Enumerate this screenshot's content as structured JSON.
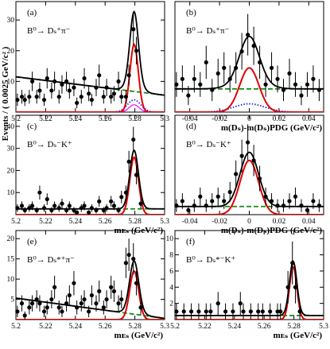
{
  "y_axis_label": "Events / ( 0.0025 GeV/c² )",
  "chart_data": [
    {
      "type": "scatter",
      "panel_label": "(a)",
      "decay": "B⁰→ Dₛ⁺π⁻",
      "xlim": [
        5.2,
        5.3
      ],
      "ylim": [
        0,
        36
      ],
      "xticks": [
        "5.2",
        "5.22",
        "5.24",
        "5.26",
        "5.28",
        "5.3"
      ],
      "yticks": [
        10,
        20,
        30
      ],
      "xlabel": "",
      "points": {
        "x": [
          5.201,
          5.204,
          5.206,
          5.209,
          5.211,
          5.214,
          5.216,
          5.219,
          5.221,
          5.224,
          5.226,
          5.229,
          5.231,
          5.234,
          5.236,
          5.239,
          5.241,
          5.244,
          5.246,
          5.249,
          5.251,
          5.254,
          5.256,
          5.259,
          5.261,
          5.264,
          5.266,
          5.269,
          5.271,
          5.274,
          5.276,
          5.279,
          5.281,
          5.284
        ],
        "y": [
          4,
          5,
          4,
          5,
          10,
          5,
          7,
          4,
          11,
          7,
          10,
          5,
          9,
          10,
          7,
          8,
          3,
          5,
          11,
          6,
          4,
          8,
          12,
          5,
          8,
          5,
          6,
          10,
          5,
          5,
          12,
          27,
          20,
          0
        ]
      },
      "curves": {
        "total": "black",
        "signal": "red",
        "combinatorial": "green dashed",
        "peaking": "blue dotted",
        "cross_feed": "magenta"
      },
      "signal": {
        "mean": 5.2795,
        "sigma": 0.0028,
        "amp": 22
      },
      "background": {
        "flat": 8.5,
        "slope": 0.6,
        "peak": 4
      }
    },
    {
      "type": "scatter",
      "panel_label": "(b)",
      "decay": "B⁰→ Dₛ⁺π⁻",
      "xlim": [
        -0.05,
        0.05
      ],
      "ylim": [
        0,
        20
      ],
      "xticks": [
        "-0.04",
        "-0.02",
        "0",
        "0.02",
        "0.04"
      ],
      "yticks": [],
      "xlabel": "m(Dₛ)-m(Dₛ)PDG (GeV/c²)",
      "points": {
        "x": [
          -0.049,
          -0.045,
          -0.041,
          -0.037,
          -0.033,
          -0.029,
          -0.025,
          -0.021,
          -0.017,
          -0.013,
          -0.009,
          -0.005,
          -0.001,
          0.003,
          0.007,
          0.011,
          0.015,
          0.019,
          0.023,
          0.027,
          0.031,
          0.035,
          0.039,
          0.043,
          0.047
        ],
        "y": [
          5,
          6,
          3,
          6,
          5,
          9,
          4,
          7,
          8,
          6,
          8,
          11,
          14,
          12,
          9,
          5,
          8,
          6,
          4,
          7,
          5,
          3,
          5,
          6,
          4
        ]
      },
      "curves": {
        "total": "black",
        "signal": "red",
        "combinatorial": "green dashed",
        "peaking": "blue dotted"
      },
      "signal": {
        "mean": 0.0,
        "sigma": 0.0065,
        "amp": 8
      },
      "background": {
        "flat": 4.2,
        "slope": 0.0,
        "peak": 1.5
      }
    },
    {
      "type": "scatter",
      "panel_label": "(c)",
      "decay": "B⁰→ Dₛ⁻K⁺",
      "xlim": [
        5.2,
        5.3
      ],
      "ylim": [
        0,
        45
      ],
      "xticks": [
        "5.2",
        "5.22",
        "5.24",
        "5.26",
        "5.28",
        "5.3"
      ],
      "yticks": [
        10,
        20,
        30,
        40
      ],
      "xlabel": "mᴇₛ (GeV/c²)",
      "points": {
        "x": [
          5.201,
          5.204,
          5.206,
          5.209,
          5.211,
          5.214,
          5.216,
          5.219,
          5.221,
          5.224,
          5.226,
          5.229,
          5.231,
          5.234,
          5.236,
          5.239,
          5.241,
          5.244,
          5.246,
          5.249,
          5.251,
          5.254,
          5.256,
          5.259,
          5.261,
          5.264,
          5.266,
          5.269,
          5.271,
          5.274,
          5.276,
          5.279,
          5.281,
          5.284
        ],
        "y": [
          3,
          4,
          2,
          3,
          4,
          2,
          10,
          3,
          7,
          2,
          4,
          3,
          5,
          2,
          4,
          2,
          1,
          3,
          4,
          1,
          3,
          2,
          6,
          2,
          3,
          6,
          4,
          2,
          8,
          10,
          24,
          34,
          18,
          5
        ]
      },
      "curves": {
        "total": "black",
        "signal": "red",
        "combinatorial": "green dashed"
      },
      "signal": {
        "mean": 5.2795,
        "sigma": 0.0029,
        "amp": 26
      },
      "background": {
        "flat": 2.6,
        "slope": 0.0,
        "peak": 0.5
      }
    },
    {
      "type": "scatter",
      "panel_label": "(d)",
      "decay": "B⁰→ Dₛ⁻K⁺",
      "xlim": [
        -0.05,
        0.05
      ],
      "ylim": [
        0,
        22
      ],
      "xticks": [
        "-0.04",
        "-0.02",
        "0",
        "0.02",
        "0.04"
      ],
      "yticks": [],
      "xlabel": "m(Dₛ)-m(Dₛ)PDG (GeV/c²)",
      "points": {
        "x": [
          -0.049,
          -0.045,
          -0.041,
          -0.037,
          -0.033,
          -0.029,
          -0.025,
          -0.021,
          -0.017,
          -0.013,
          -0.009,
          -0.005,
          -0.001,
          0.003,
          0.007,
          0.011,
          0.015,
          0.019,
          0.023,
          0.027,
          0.031,
          0.035,
          0.039,
          0.043,
          0.047
        ],
        "y": [
          2,
          3,
          1,
          2,
          4,
          2,
          3,
          4,
          3,
          5,
          9,
          13,
          16,
          12,
          8,
          4,
          3,
          2,
          2,
          3,
          4,
          2,
          1,
          3,
          2
        ]
      },
      "curves": {
        "total": "black",
        "signal": "red",
        "combinatorial": "green dashed"
      },
      "signal": {
        "mean": 0.0,
        "sigma": 0.0062,
        "amp": 12
      },
      "background": {
        "flat": 1.8,
        "slope": 0.0,
        "peak": 0.0
      }
    },
    {
      "type": "scatter",
      "panel_label": "(e)",
      "decay": "B⁰→ Dₛ*⁺π⁻",
      "xlim": [
        5.2,
        5.3
      ],
      "ylim": [
        0,
        22
      ],
      "xticks": [
        "5.2",
        "5.22",
        "5.24",
        "5.26",
        "5.28",
        "5.3"
      ],
      "yticks": [
        5,
        10,
        15,
        20
      ],
      "xlabel": "mᴇₛ (GeV/c²)",
      "points": {
        "x": [
          5.201,
          5.204,
          5.206,
          5.209,
          5.211,
          5.214,
          5.216,
          5.219,
          5.221,
          5.224,
          5.226,
          5.229,
          5.231,
          5.234,
          5.236,
          5.239,
          5.241,
          5.244,
          5.246,
          5.249,
          5.251,
          5.254,
          5.256,
          5.259,
          5.261,
          5.264,
          5.266,
          5.269,
          5.271,
          5.274,
          5.276,
          5.279,
          5.281,
          5.284
        ],
        "y": [
          2,
          4,
          1,
          3,
          4,
          5,
          4,
          2,
          3,
          5,
          8,
          3,
          2,
          4,
          6,
          9,
          3,
          4,
          5,
          2,
          6,
          4,
          7,
          3,
          5,
          8,
          7,
          4,
          5,
          14,
          16,
          15,
          9,
          3
        ]
      },
      "curves": {
        "total": "black",
        "signal": "red",
        "combinatorial": "green dashed"
      },
      "signal": {
        "mean": 5.2795,
        "sigma": 0.003,
        "amp": 12
      },
      "background": {
        "flat": 2.8,
        "slope": 0.5,
        "peak": 1.2
      }
    },
    {
      "type": "scatter",
      "panel_label": "(f)",
      "decay": "B⁰→ Dₛ*⁻K⁺",
      "xlim": [
        5.2,
        5.3
      ],
      "ylim": [
        0,
        11
      ],
      "xticks": [
        "5.2",
        "5.22",
        "5.24",
        "5.26",
        "5.28",
        "5.3"
      ],
      "yticks": [
        2,
        4,
        6,
        8,
        10
      ],
      "xlabel": "mᴇₛ (GeV/c²)",
      "points": {
        "x": [
          5.201,
          5.204,
          5.206,
          5.209,
          5.211,
          5.214,
          5.216,
          5.219,
          5.221,
          5.224,
          5.226,
          5.229,
          5.231,
          5.234,
          5.236,
          5.239,
          5.241,
          5.244,
          5.246,
          5.249,
          5.251,
          5.254,
          5.256,
          5.259,
          5.261,
          5.264,
          5.266,
          5.269,
          5.271,
          5.274,
          5.276,
          5.279,
          5.281,
          5.284
        ],
        "y": [
          1,
          0,
          1,
          0,
          1,
          0,
          1,
          0,
          1,
          1,
          0,
          2,
          0,
          1,
          0,
          1,
          0,
          2,
          1,
          0,
          1,
          0,
          1,
          1,
          0,
          1,
          0,
          1,
          1,
          0,
          4,
          7,
          4,
          1
        ]
      },
      "curves": {
        "total": "black",
        "signal": "red",
        "combinatorial": "green dashed"
      },
      "signal": {
        "mean": 5.2795,
        "sigma": 0.0025,
        "amp": 6.5
      },
      "background": {
        "flat": 0.5,
        "slope": 0.0,
        "peak": 0.2
      }
    }
  ]
}
